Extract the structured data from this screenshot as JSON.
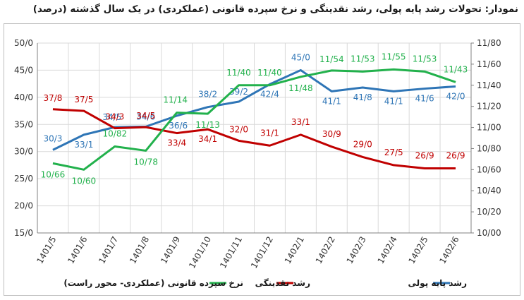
{
  "title": "نمودار: تحولات رشد پایه پولی، رشد نقدینگی و نرخ سپرده قانونی (عملکردی) در یک سال گذشته (درصد)",
  "chart_data": {
    "type": "line",
    "categories": [
      "1401/5",
      "1401/6",
      "1401/7",
      "1401/8",
      "1401/9",
      "1401/10",
      "1401/11",
      "1401/12",
      "1402/1",
      "1402/2",
      "1402/3",
      "1402/4",
      "1402/5",
      "1402/6"
    ],
    "left_ticks": [
      "50/0",
      "45/0",
      "40/0",
      "35/0",
      "30/0",
      "25/0",
      "20/0",
      "15/0"
    ],
    "right_ticks": [
      "11/80",
      "11/60",
      "11/40",
      "11/20",
      "11/00",
      "10/80",
      "10/60",
      "10/40",
      "10/20",
      "10/00"
    ],
    "ylim_left": [
      15,
      50
    ],
    "ylim_right": [
      10.0,
      11.8
    ],
    "grid": true,
    "legend_position": "bottom",
    "series": [
      {
        "name": "رشد پایه پولی",
        "axis": "left",
        "color": "#2e75b6",
        "values": [
          30.3,
          33.1,
          34.5,
          34.6,
          36.6,
          38.2,
          39.2,
          42.4,
          45.0,
          41.1,
          41.8,
          41.1,
          41.6,
          42.0
        ],
        "labels": [
          "30/3",
          "33/1",
          "34/5",
          "34/6",
          "36/6",
          "38/2",
          "39/2",
          "42/4",
          "45/0",
          "41/1",
          "41/8",
          "41/1",
          "41/6",
          "42/0"
        ]
      },
      {
        "name": "رشد نقدینگی",
        "axis": "left",
        "color": "#c00000",
        "values": [
          37.8,
          37.5,
          34.3,
          34.5,
          33.4,
          34.1,
          32.0,
          31.1,
          33.1,
          30.9,
          29.0,
          27.5,
          26.9,
          26.9
        ],
        "labels": [
          "37/8",
          "37/5",
          "34/3",
          "34/5",
          "33/4",
          "34/1",
          "32/0",
          "31/1",
          "33/1",
          "30/9",
          "29/0",
          "27/5",
          "26/9",
          "26/9"
        ]
      },
      {
        "name": "نرخ سپرده قانونی (عملکردی- محور راست)",
        "axis": "right",
        "color": "#22b14c",
        "values": [
          10.66,
          10.6,
          10.82,
          10.78,
          11.14,
          11.13,
          11.4,
          11.4,
          11.48,
          11.54,
          11.53,
          11.55,
          11.53,
          11.43
        ],
        "labels": [
          "10/66",
          "10/60",
          "10/82",
          "10/78",
          "11/14",
          "11/13",
          "11/40",
          "11/40",
          "11/48",
          "11/54",
          "11/53",
          "11/55",
          "11/53",
          "11/43"
        ]
      }
    ]
  }
}
